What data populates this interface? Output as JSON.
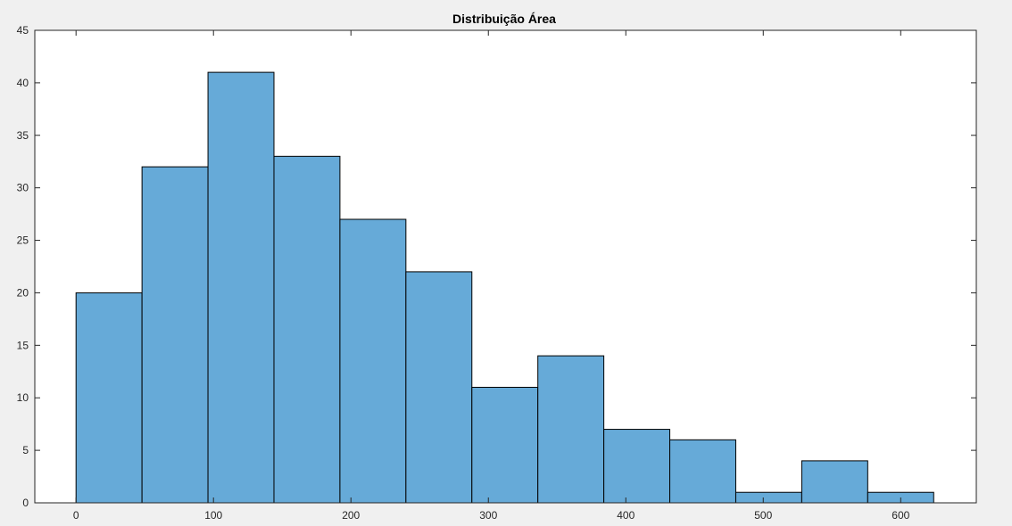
{
  "chart_data": {
    "type": "bar",
    "title": "Distribuição Área",
    "xlabel": "",
    "ylabel": "",
    "bin_edges": [
      0,
      48,
      96,
      144,
      192,
      240,
      288,
      336,
      384,
      432,
      480,
      528,
      576,
      624
    ],
    "values": [
      20,
      32,
      41,
      33,
      27,
      22,
      11,
      14,
      7,
      6,
      1,
      4,
      1
    ],
    "xlim": [
      -30,
      655
    ],
    "ylim": [
      0,
      45
    ],
    "xticks": [
      0,
      100,
      200,
      300,
      400,
      500,
      600
    ],
    "yticks": [
      0,
      5,
      10,
      15,
      20,
      25,
      30,
      35,
      40,
      45
    ],
    "bar_color": "#66aad8",
    "edge_color": "#000000",
    "grid": false
  }
}
